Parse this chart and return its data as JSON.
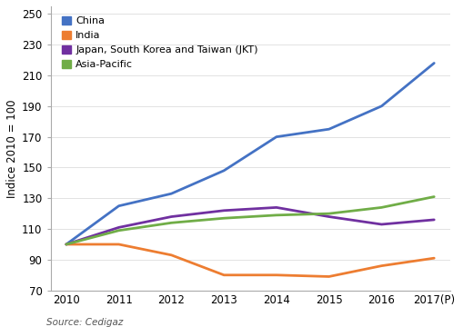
{
  "years": [
    2010,
    2011,
    2012,
    2013,
    2014,
    2015,
    2016,
    2017
  ],
  "year_labels": [
    "2010",
    "2011",
    "2012",
    "2013",
    "2014",
    "2015",
    "2016",
    "2017(P)"
  ],
  "series_order": [
    "China",
    "India",
    "Japan, South Korea and Taiwan (JKT)",
    "Asia-Pacific"
  ],
  "series": {
    "China": {
      "values": [
        100,
        125,
        133,
        148,
        170,
        175,
        190,
        218
      ],
      "color": "#4472C4"
    },
    "India": {
      "values": [
        100,
        100,
        93,
        80,
        80,
        79,
        86,
        91
      ],
      "color": "#ED7D31"
    },
    "Japan, South Korea and Taiwan (JKT)": {
      "values": [
        100,
        111,
        118,
        122,
        124,
        118,
        113,
        116
      ],
      "color": "#7030A0"
    },
    "Asia-Pacific": {
      "values": [
        100,
        109,
        114,
        117,
        119,
        120,
        124,
        131
      ],
      "color": "#70AD47"
    }
  },
  "ylabel": "Indice 2010 = 100",
  "ylim": [
    70,
    255
  ],
  "yticks": [
    70,
    90,
    110,
    130,
    150,
    170,
    190,
    210,
    230,
    250
  ],
  "source_text": "Source: Cedigaz",
  "linewidth": 2.0,
  "background_color": "#ffffff",
  "legend_fontsize": 8.0,
  "tick_fontsize": 8.5
}
